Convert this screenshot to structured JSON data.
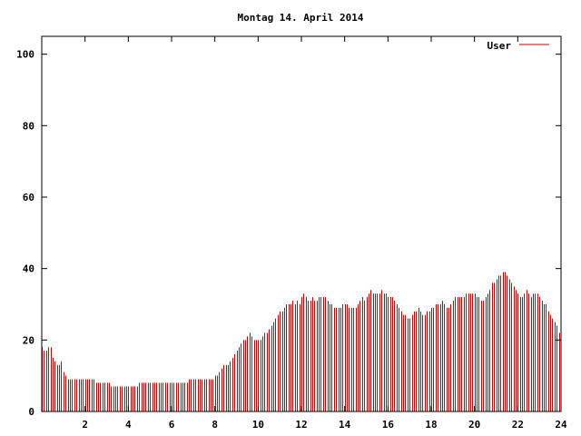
{
  "chart_data": {
    "type": "bar",
    "title": "Montag 14. April 2014",
    "xlabel": "",
    "ylabel": "",
    "xlim": [
      0,
      24
    ],
    "ylim": [
      0,
      105
    ],
    "x_ticks": [
      2,
      4,
      6,
      8,
      10,
      12,
      14,
      16,
      18,
      20,
      22,
      24
    ],
    "y_ticks": [
      0,
      20,
      40,
      60,
      80,
      100
    ],
    "grid": false,
    "legend_position": "top-right",
    "colors": {
      "series": "#cc0000",
      "axis": "#000000",
      "background": "#ffffff"
    },
    "series": [
      {
        "name": "User",
        "x_start": 0,
        "x_step": 0.1,
        "values": [
          18,
          17,
          17,
          18,
          18,
          15,
          14,
          13,
          13,
          14,
          11,
          10,
          9,
          9,
          9,
          9,
          9,
          9,
          9,
          9,
          9,
          9,
          9,
          9,
          9,
          8,
          8,
          8,
          8,
          8,
          8,
          8,
          7,
          7,
          7,
          7,
          7,
          7,
          7,
          7,
          7,
          7,
          7,
          7,
          7,
          8,
          8,
          8,
          8,
          8,
          8,
          8,
          8,
          8,
          8,
          8,
          8,
          8,
          8,
          8,
          8,
          8,
          8,
          8,
          8,
          8,
          8,
          8,
          9,
          9,
          9,
          9,
          9,
          9,
          9,
          9,
          9,
          9,
          9,
          9,
          10,
          10,
          11,
          12,
          13,
          13,
          13,
          14,
          15,
          16,
          17,
          18,
          19,
          20,
          20,
          21,
          22,
          21,
          20,
          20,
          20,
          20,
          21,
          22,
          22,
          23,
          24,
          25,
          26,
          27,
          28,
          28,
          29,
          30,
          30,
          30,
          31,
          30,
          31,
          30,
          32,
          33,
          32,
          31,
          31,
          32,
          31,
          31,
          32,
          32,
          32,
          32,
          31,
          30,
          30,
          29,
          29,
          29,
          29,
          30,
          30,
          30,
          29,
          29,
          29,
          29,
          30,
          31,
          32,
          31,
          32,
          33,
          34,
          33,
          33,
          33,
          33,
          34,
          33,
          33,
          32,
          32,
          32,
          31,
          30,
          29,
          28,
          27,
          27,
          26,
          26,
          27,
          28,
          28,
          29,
          28,
          27,
          27,
          28,
          28,
          29,
          29,
          30,
          30,
          30,
          31,
          30,
          29,
          29,
          30,
          31,
          32,
          32,
          32,
          32,
          32,
          33,
          33,
          33,
          33,
          33,
          32,
          32,
          31,
          31,
          32,
          33,
          34,
          36,
          36,
          37,
          38,
          38,
          39,
          39,
          38,
          37,
          36,
          35,
          34,
          33,
          32,
          32,
          33,
          34,
          33,
          32,
          33,
          33,
          33,
          32,
          31,
          30,
          30,
          28,
          27,
          26,
          25,
          24,
          22
        ]
      }
    ]
  }
}
